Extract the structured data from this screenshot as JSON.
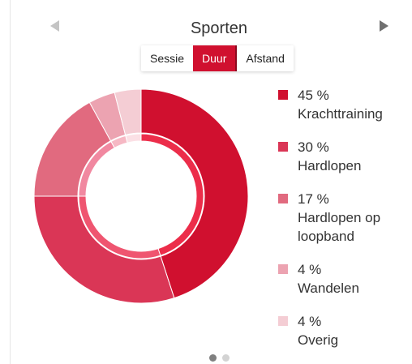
{
  "widget": {
    "title": "Sporten",
    "tabs": [
      {
        "label": "Sessie",
        "active": false
      },
      {
        "label": "Duur",
        "active": true
      },
      {
        "label": "Afstand",
        "active": false
      }
    ]
  },
  "chart_data": {
    "type": "pie",
    "variant": "donut",
    "series": [
      {
        "name": "Krachttraining",
        "value": 45,
        "color": "#d0102f"
      },
      {
        "name": "Hardlopen",
        "value": 30,
        "color": "#da3656"
      },
      {
        "name": "Hardlopen op loopband",
        "value": 17,
        "color": "#e16a7f"
      },
      {
        "name": "Wandelen",
        "value": 4,
        "color": "#eca3b1"
      },
      {
        "name": "Overig",
        "value": 4,
        "color": "#f4cdd4"
      }
    ]
  },
  "legend": [
    {
      "pct": "45 %",
      "label": "Krachttraining",
      "color": "#d0102f"
    },
    {
      "pct": "30 %",
      "label": "Hardlopen",
      "color": "#da3656"
    },
    {
      "pct": "17 %",
      "label": "Hardlopen op loopband",
      "color": "#e16a7f"
    },
    {
      "pct": "4 %",
      "label": "Wandelen",
      "color": "#eca3b1"
    },
    {
      "pct": "4 %",
      "label": "Overig",
      "color": "#f4cdd4"
    }
  ],
  "pagination": {
    "pages": 2,
    "active": 1
  }
}
